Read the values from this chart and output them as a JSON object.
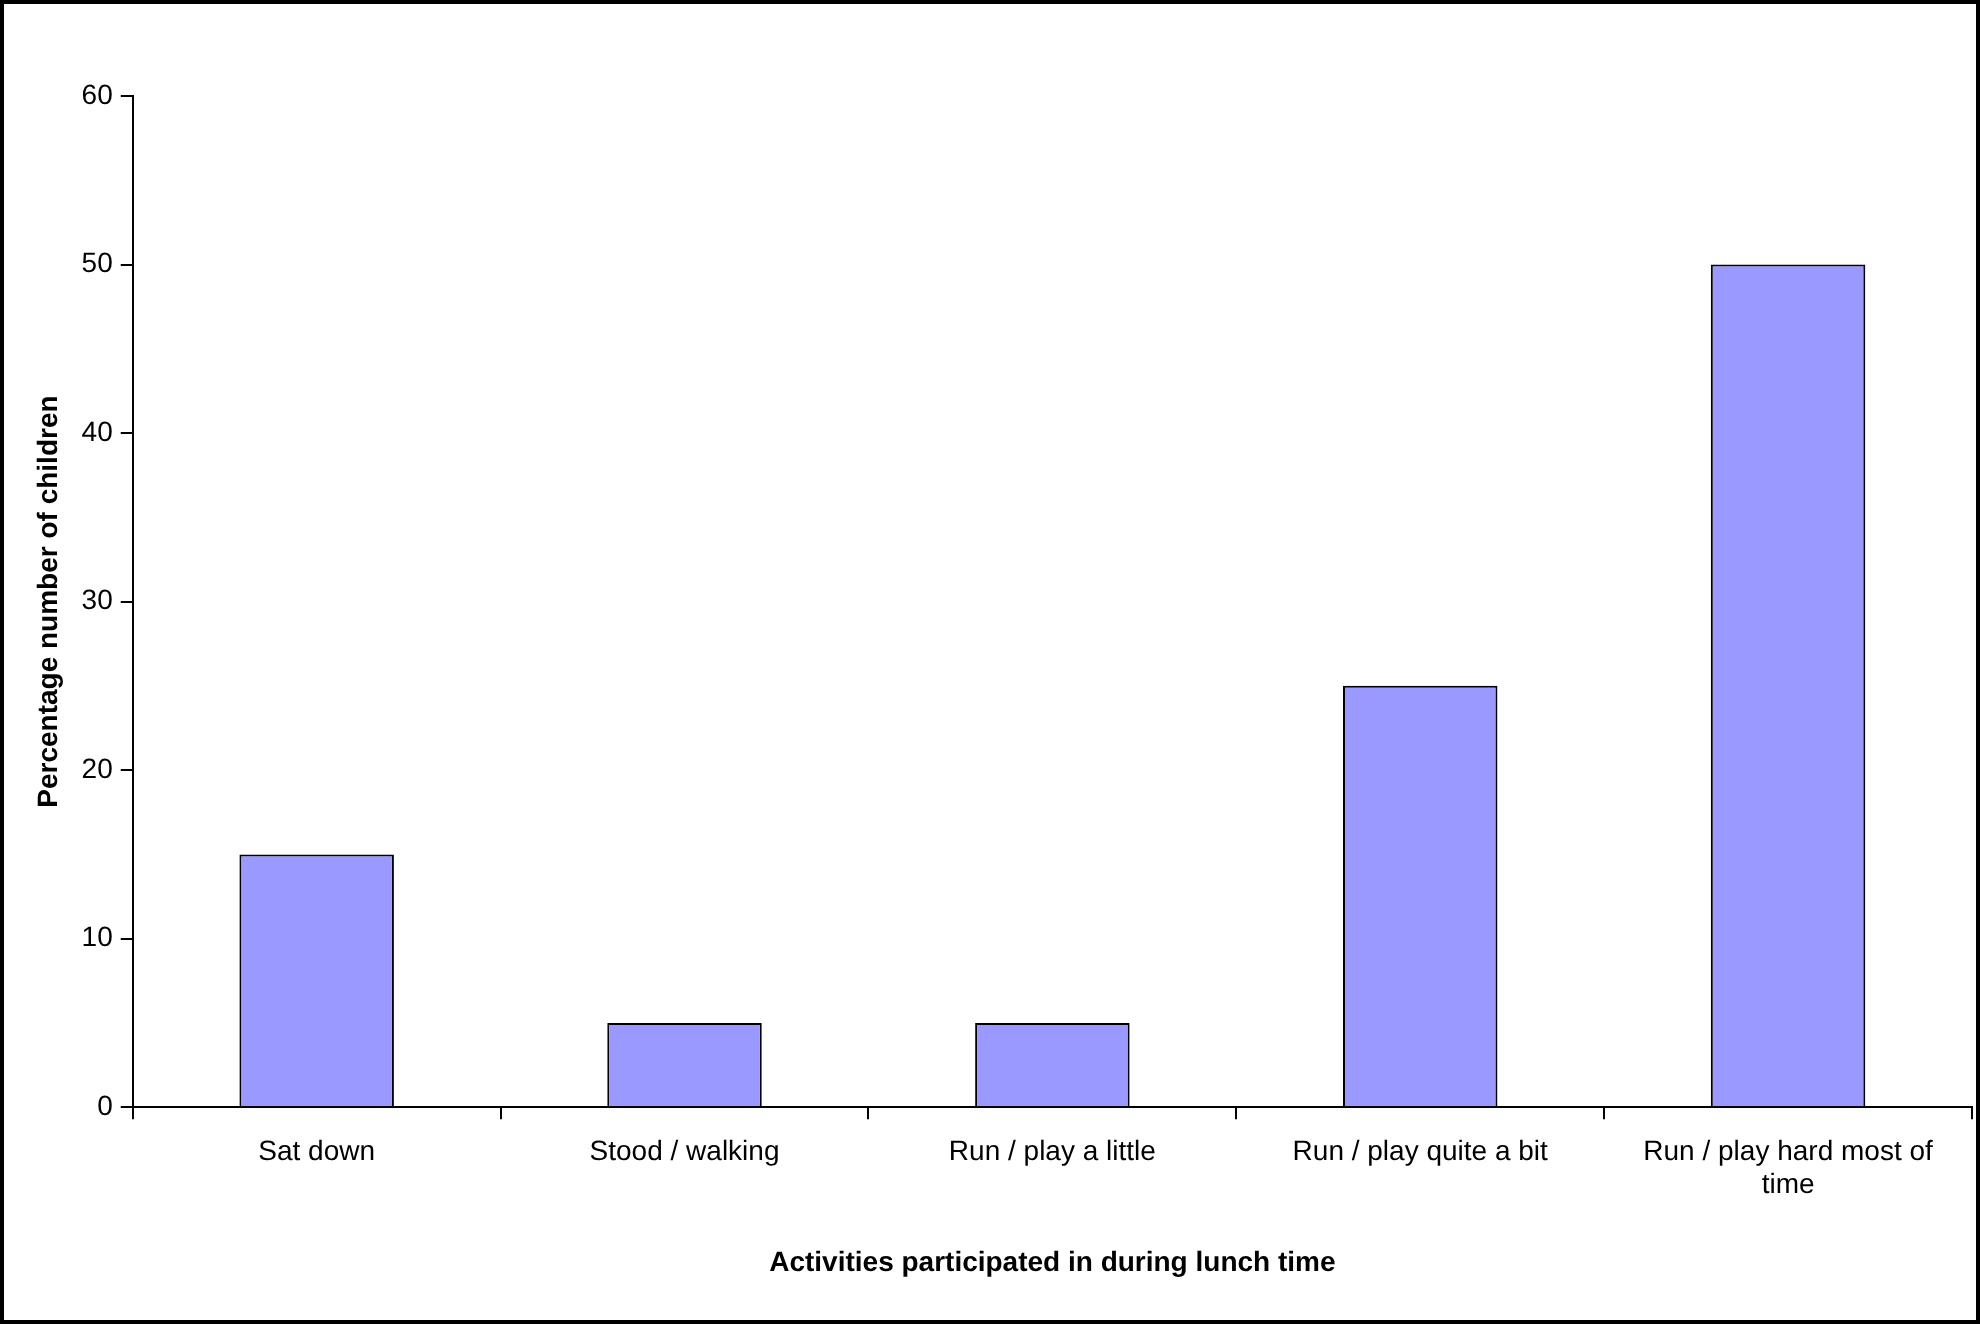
{
  "chart_data": {
    "type": "bar",
    "xlabel": "Activities participated in during lunch time",
    "ylabel": "Percentage number of children",
    "categories": [
      "Sat down",
      "Stood / walking",
      "Run / play a little",
      "Run / play quite a bit",
      "Run / play hard most of time"
    ],
    "values": [
      15,
      5,
      5,
      25,
      50
    ],
    "color": "#9999ff",
    "ylim": [
      0,
      60
    ],
    "yticks": [
      0,
      10,
      20,
      30,
      40,
      50,
      60
    ],
    "grid": false,
    "legend": false
  }
}
